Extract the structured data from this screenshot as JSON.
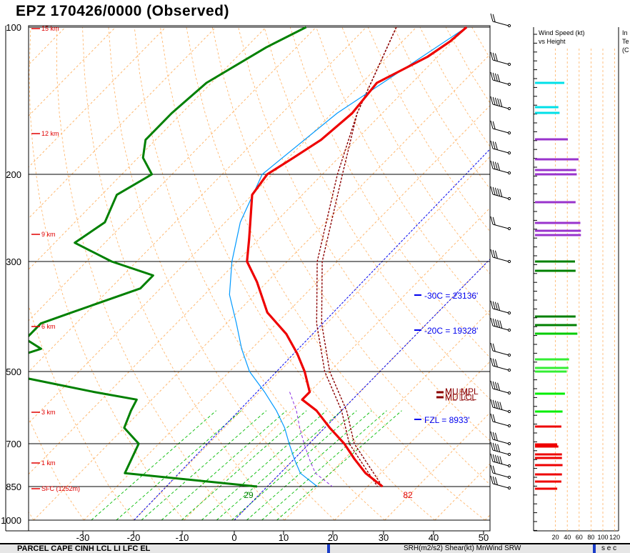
{
  "header": {
    "title": "EPZ   170426/0000  (Observed)"
  },
  "chart_data": {
    "type": "skew-t",
    "title": "EPZ   170426/0000  (Observed)",
    "pressure_levels": [
      "100",
      "200",
      "300",
      "500",
      "700",
      "850",
      "1000"
    ],
    "temperature_ticks": [
      "-30",
      "-20",
      "-10",
      "0",
      "10",
      "20",
      "30",
      "40",
      "50"
    ],
    "height_labels": [
      "15 km",
      "12 km",
      "9 km",
      "6 km",
      "3 km",
      "1 km",
      "SFC (1252m)"
    ],
    "temperature_profile": [
      [
        100,
        -50
      ],
      [
        107,
        -50.5
      ],
      [
        115,
        -52
      ],
      [
        130,
        -57
      ],
      [
        150,
        -56
      ],
      [
        170,
        -57
      ],
      [
        185,
        -59
      ],
      [
        200,
        -61
      ],
      [
        220,
        -60
      ],
      [
        250,
        -55
      ],
      [
        270,
        -52
      ],
      [
        300,
        -48
      ],
      [
        330,
        -42
      ],
      [
        380,
        -34
      ],
      [
        420,
        -26
      ],
      [
        460,
        -20
      ],
      [
        500,
        -15
      ],
      [
        550,
        -10
      ],
      [
        570,
        -10
      ],
      [
        600,
        -5
      ],
      [
        650,
        1
      ],
      [
        700,
        7
      ],
      [
        750,
        12
      ],
      [
        800,
        17
      ],
      [
        850,
        23
      ]
    ],
    "dewpoint_profile": [
      [
        100,
        -82
      ],
      [
        110,
        -86
      ],
      [
        130,
        -91
      ],
      [
        150,
        -92
      ],
      [
        170,
        -92
      ],
      [
        185,
        -89
      ],
      [
        200,
        -84
      ],
      [
        220,
        -87
      ],
      [
        250,
        -84
      ],
      [
        275,
        -86
      ],
      [
        300,
        -75
      ],
      [
        320,
        -64
      ],
      [
        340,
        -64
      ],
      [
        380,
        -73
      ],
      [
        400,
        -77
      ],
      [
        430,
        -77
      ],
      [
        450,
        -72
      ],
      [
        470,
        -76
      ],
      [
        500,
        -77
      ],
      [
        550,
        -53
      ],
      [
        570,
        -43
      ],
      [
        600,
        -42
      ],
      [
        650,
        -40
      ],
      [
        700,
        -34
      ],
      [
        800,
        -31
      ],
      [
        850,
        -2
      ]
    ],
    "surface_labels": {
      "dewpoint_f": "29",
      "temperature_f": "82"
    },
    "annotations": [
      {
        "text": "-30C = 23136'"
      },
      {
        "text": "-20C = 19328'"
      },
      {
        "text": "FZL = 8933'"
      },
      {
        "text": "MU MPL"
      },
      {
        "text": "ML EL"
      },
      {
        "text": "MU LCL"
      },
      {
        "text": "ML LCL"
      }
    ],
    "wind_panel": {
      "title": "Wind Speed (kt)",
      "subtitle": "vs Height",
      "axis_ticks": [
        "20",
        "40",
        "60",
        "80",
        "100",
        "120"
      ],
      "bars": [
        {
          "speed": 35,
          "color": "#00e0e8"
        },
        {
          "speed": 25,
          "color": "#00e0e8"
        },
        {
          "speed": 27,
          "color": "#00e0e8"
        },
        {
          "speed": 41,
          "color": "#9933cc"
        },
        {
          "speed": 59,
          "color": "#9933cc"
        },
        {
          "speed": 55,
          "color": "#9933cc"
        },
        {
          "speed": 56,
          "color": "#9933cc"
        },
        {
          "speed": 54,
          "color": "#9933cc"
        },
        {
          "speed": 62,
          "color": "#9933cc"
        },
        {
          "speed": 63,
          "color": "#9933cc"
        },
        {
          "speed": 63,
          "color": "#9933cc"
        },
        {
          "speed": 53,
          "color": "#008000"
        },
        {
          "speed": 54,
          "color": "#008000"
        },
        {
          "speed": 54,
          "color": "#008000"
        },
        {
          "speed": 56,
          "color": "#008000"
        },
        {
          "speed": 57,
          "color": "#00cc00"
        },
        {
          "speed": 43,
          "color": "#33ee33"
        },
        {
          "speed": 42,
          "color": "#33ee33"
        },
        {
          "speed": 39,
          "color": "#33ee33"
        },
        {
          "speed": 36,
          "color": "#00ee00"
        },
        {
          "speed": 32,
          "color": "#00ee00"
        },
        {
          "speed": 30,
          "color": "#ee0000"
        },
        {
          "speed": 23,
          "color": "#ee0000"
        },
        {
          "speed": 25,
          "color": "#ee0000"
        },
        {
          "speed": 31,
          "color": "#ee0000"
        },
        {
          "speed": 31,
          "color": "#ee0000"
        },
        {
          "speed": 32,
          "color": "#ee0000"
        },
        {
          "speed": 31,
          "color": "#ee0000"
        },
        {
          "speed": 30,
          "color": "#ee0000"
        },
        {
          "speed": 23,
          "color": "#ee0000"
        }
      ]
    },
    "colors": {
      "temperature": "#ee0000",
      "dewpoint": "#008000",
      "parcel": "#8b0000",
      "freezing_lines": "#0000ee",
      "isotherms": "#ffb060",
      "mixing_ratio": "#00bb00",
      "wetbulb": "#0099ff"
    }
  },
  "bottom_bar": {
    "left": "PARCEL      CAPE   CINH   LCL    LI   LFC    EL",
    "mid": "SRH(m2/s2)  Shear(kt)   MnWind     SRW",
    "right": "s e c"
  },
  "right_panel": {
    "label_lines": [
      "In",
      "Te",
      "(C"
    ]
  }
}
